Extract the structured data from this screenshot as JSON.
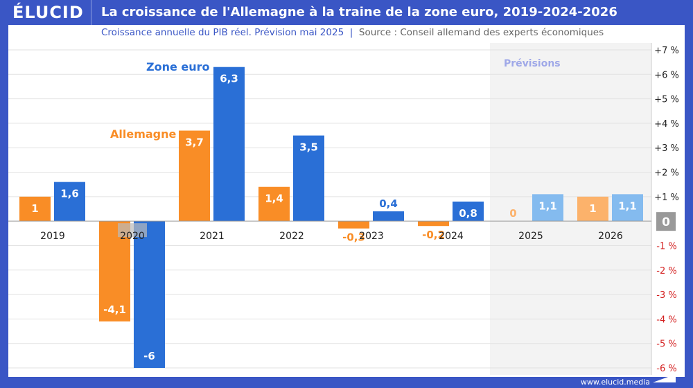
{
  "header": {
    "logo": "ÉLUCID",
    "title": "La croissance de l'Allemagne à la traine de la zone euro, 2019-2024-2026"
  },
  "subtitle": "Croissance annuelle du PIB réel. Prévision mai 2025",
  "source": "Source : Conseil allemand des experts économiques",
  "footer": "www.elucid.media",
  "chart_data": {
    "type": "bar",
    "categories": [
      "2019",
      "2020",
      "2021",
      "2022",
      "2023",
      "2024",
      "2025",
      "2026"
    ],
    "series": [
      {
        "name": "Allemagne",
        "values": [
          1,
          -4.1,
          3.7,
          1.4,
          -0.3,
          -0.2,
          0,
          1
        ],
        "labels": [
          "1",
          "-4,1",
          "3,7",
          "1,4",
          "-0,3",
          "-0,2",
          "0",
          "1"
        ],
        "color": "#f98d26",
        "forecast_color": "#fcb26b"
      },
      {
        "name": "Zone euro",
        "values": [
          1.6,
          -6,
          6.3,
          3.5,
          0.4,
          0.8,
          1.1,
          1.1
        ],
        "labels": [
          "1,6",
          "-6",
          "6,3",
          "3,5",
          "0,4",
          "0,8",
          "1,1",
          "1,1"
        ],
        "color": "#2a6fd6",
        "forecast_color": "#84bbef"
      }
    ],
    "forecast_categories": [
      "2025",
      "2026"
    ],
    "forecast_label": "Prévisions",
    "ylim": [
      -6,
      7
    ],
    "yticks": [
      "+7 %",
      "+6 %",
      "+5 %",
      "+4 %",
      "+3 %",
      "+2 %",
      "+1 %",
      "0",
      "-1 %",
      "-2 %",
      "-3 %",
      "-4 %",
      "-5 %",
      "-6 %"
    ],
    "grid": true,
    "unit": "%"
  }
}
